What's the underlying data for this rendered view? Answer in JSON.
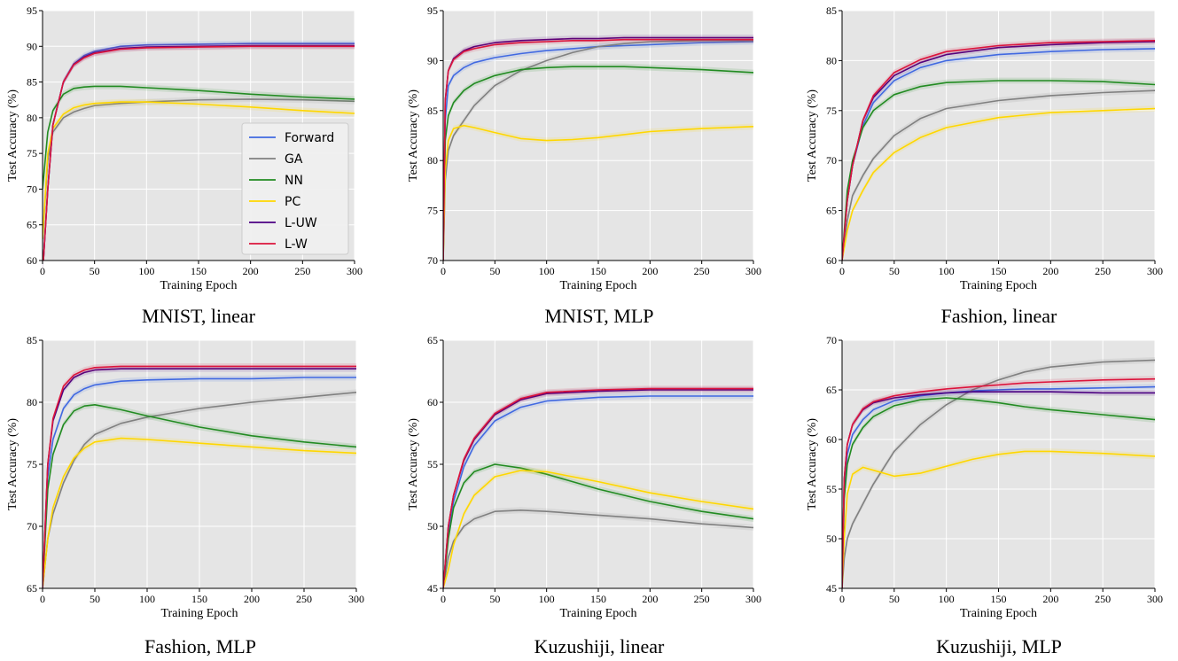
{
  "legend_labels": [
    "Forward",
    "GA",
    "NN",
    "PC",
    "L-UW",
    "L-W"
  ],
  "series_colors": {
    "Forward": "#4169e1",
    "GA": "#808080",
    "NN": "#228b22",
    "PC": "#ffd700",
    "L-UW": "#4b0082",
    "L-W": "#dc143c"
  },
  "plot_background": "#e5e5e5",
  "chart_data": [
    {
      "type": "line",
      "title": "MNIST, linear",
      "xlabel": "Training Epoch",
      "ylabel": "Test Accuracy (%)",
      "xlim": [
        0,
        300
      ],
      "ylim": [
        60,
        95
      ],
      "xticks": [
        0,
        50,
        100,
        150,
        200,
        250,
        300
      ],
      "yticks": [
        60,
        65,
        70,
        75,
        80,
        85,
        90,
        95
      ],
      "grid": true,
      "legend": "lower-right",
      "x": [
        0,
        5,
        10,
        20,
        30,
        40,
        50,
        75,
        100,
        150,
        200,
        250,
        300
      ],
      "series": [
        {
          "name": "Forward",
          "values": [
            58,
            70,
            79,
            85,
            87.5,
            88.7,
            89.3,
            90.0,
            90.2,
            90.3,
            90.4,
            90.4,
            90.4
          ]
        },
        {
          "name": "GA",
          "values": [
            63,
            74,
            78,
            80,
            80.8,
            81.3,
            81.7,
            82.0,
            82.2,
            82.5,
            82.6,
            82.5,
            82.3
          ]
        },
        {
          "name": "NN",
          "values": [
            70,
            78,
            81,
            83.3,
            84.1,
            84.3,
            84.4,
            84.4,
            84.2,
            83.8,
            83.3,
            82.9,
            82.6
          ]
        },
        {
          "name": "PC",
          "values": [
            63,
            75,
            78.5,
            80.5,
            81.4,
            81.8,
            82.0,
            82.2,
            82.2,
            81.9,
            81.5,
            81.0,
            80.6
          ]
        },
        {
          "name": "L-UW",
          "values": [
            58,
            70,
            79,
            85,
            87.5,
            88.5,
            89.1,
            89.7,
            89.9,
            90.0,
            90.1,
            90.1,
            90.1
          ]
        },
        {
          "name": "L-W",
          "values": [
            58,
            70,
            79,
            85,
            87.4,
            88.4,
            89.0,
            89.6,
            89.8,
            89.9,
            90.0,
            90.0,
            90.0
          ]
        }
      ]
    },
    {
      "type": "line",
      "title": "MNIST, MLP",
      "xlabel": "Training Epoch",
      "ylabel": "Test Accuracy (%)",
      "xlim": [
        0,
        300
      ],
      "ylim": [
        70,
        95
      ],
      "xticks": [
        0,
        50,
        100,
        150,
        200,
        250,
        300
      ],
      "yticks": [
        70,
        75,
        80,
        85,
        90,
        95
      ],
      "grid": true,
      "x": [
        0,
        2,
        5,
        10,
        20,
        30,
        50,
        75,
        100,
        125,
        150,
        175,
        200,
        250,
        300
      ],
      "series": [
        {
          "name": "Forward",
          "values": [
            70,
            84,
            87.5,
            88.5,
            89.3,
            89.8,
            90.3,
            90.7,
            91.0,
            91.2,
            91.4,
            91.5,
            91.6,
            91.8,
            91.9
          ]
        },
        {
          "name": "GA",
          "values": [
            70,
            78,
            81,
            82.5,
            84,
            85.5,
            87.5,
            89,
            90,
            90.8,
            91.4,
            91.7,
            91.9,
            92.0,
            92.0
          ]
        },
        {
          "name": "NN",
          "values": [
            70,
            82,
            84.5,
            85.8,
            87,
            87.7,
            88.5,
            89.1,
            89.3,
            89.4,
            89.4,
            89.4,
            89.3,
            89.1,
            88.8
          ]
        },
        {
          "name": "PC",
          "values": [
            70,
            79,
            82,
            83.2,
            83.5,
            83.3,
            82.8,
            82.2,
            82.0,
            82.1,
            82.3,
            82.6,
            82.9,
            83.2,
            83.4
          ]
        },
        {
          "name": "L-UW",
          "values": [
            70,
            86,
            89,
            90.2,
            91.0,
            91.4,
            91.8,
            92.0,
            92.1,
            92.2,
            92.2,
            92.3,
            92.3,
            92.3,
            92.3
          ]
        },
        {
          "name": "L-W",
          "values": [
            70,
            86,
            89,
            90.1,
            90.9,
            91.2,
            91.6,
            91.8,
            91.9,
            92.0,
            92.0,
            92.1,
            92.1,
            92.1,
            92.1
          ]
        }
      ]
    },
    {
      "type": "line",
      "title": "Fashion, linear",
      "xlabel": "Training Epoch",
      "ylabel": "Test Accuracy (%)",
      "xlim": [
        0,
        300
      ],
      "ylim": [
        60,
        85
      ],
      "xticks": [
        0,
        50,
        100,
        150,
        200,
        250,
        300
      ],
      "yticks": [
        60,
        65,
        70,
        75,
        80,
        85
      ],
      "grid": true,
      "x": [
        0,
        5,
        10,
        20,
        30,
        50,
        75,
        100,
        150,
        200,
        250,
        300
      ],
      "series": [
        {
          "name": "Forward",
          "values": [
            60,
            66,
            69.5,
            73.5,
            75.8,
            78.0,
            79.3,
            80.0,
            80.6,
            80.9,
            81.1,
            81.2
          ]
        },
        {
          "name": "GA",
          "values": [
            60,
            64,
            66.5,
            68.5,
            70.2,
            72.5,
            74.2,
            75.2,
            76.0,
            76.5,
            76.8,
            77.0
          ]
        },
        {
          "name": "NN",
          "values": [
            60,
            67,
            70,
            73.3,
            75.0,
            76.6,
            77.4,
            77.8,
            78.0,
            78.0,
            77.9,
            77.6
          ]
        },
        {
          "name": "PC",
          "values": [
            60,
            63,
            65,
            67,
            68.8,
            70.8,
            72.3,
            73.3,
            74.3,
            74.8,
            75.0,
            75.2
          ]
        },
        {
          "name": "L-UW",
          "values": [
            60,
            66,
            69.5,
            74,
            76.3,
            78.5,
            79.8,
            80.6,
            81.3,
            81.6,
            81.8,
            81.9
          ]
        },
        {
          "name": "L-W",
          "values": [
            60,
            66,
            69.5,
            74,
            76.5,
            78.8,
            80.1,
            80.9,
            81.5,
            81.8,
            81.9,
            82.0
          ]
        }
      ]
    },
    {
      "type": "line",
      "title": "Fashion, MLP",
      "xlabel": "Training Epoch",
      "ylabel": "Test Accuracy (%)",
      "xlim": [
        0,
        300
      ],
      "ylim": [
        65,
        85
      ],
      "xticks": [
        0,
        50,
        100,
        150,
        200,
        250,
        300
      ],
      "yticks": [
        65,
        70,
        75,
        80,
        85
      ],
      "grid": true,
      "x": [
        0,
        5,
        10,
        20,
        30,
        40,
        50,
        75,
        100,
        150,
        200,
        250,
        300
      ],
      "series": [
        {
          "name": "Forward",
          "values": [
            65,
            74,
            77,
            79.5,
            80.6,
            81.1,
            81.4,
            81.7,
            81.8,
            81.9,
            81.9,
            82.0,
            82.0
          ]
        },
        {
          "name": "GA",
          "values": [
            65,
            69,
            71,
            73.5,
            75.3,
            76.6,
            77.4,
            78.3,
            78.8,
            79.5,
            80.0,
            80.4,
            80.8
          ]
        },
        {
          "name": "NN",
          "values": [
            65,
            73,
            75.8,
            78.2,
            79.3,
            79.7,
            79.8,
            79.4,
            78.9,
            78.0,
            77.3,
            76.8,
            76.4
          ]
        },
        {
          "name": "PC",
          "values": [
            65,
            69,
            71.5,
            74,
            75.5,
            76.3,
            76.8,
            77.1,
            77.0,
            76.7,
            76.4,
            76.1,
            75.9
          ]
        },
        {
          "name": "L-UW",
          "values": [
            65,
            75,
            78.5,
            81,
            82,
            82.4,
            82.6,
            82.7,
            82.7,
            82.7,
            82.7,
            82.7,
            82.7
          ]
        },
        {
          "name": "L-W",
          "values": [
            65,
            75,
            78.7,
            81.3,
            82.2,
            82.6,
            82.8,
            82.9,
            82.9,
            82.9,
            82.9,
            82.9,
            82.9
          ]
        }
      ]
    },
    {
      "type": "line",
      "title": "Kuzushiji, linear",
      "xlabel": "Training Epoch",
      "ylabel": "Test Accuracy (%)",
      "xlim": [
        0,
        300
      ],
      "ylim": [
        45,
        65
      ],
      "xticks": [
        0,
        50,
        100,
        150,
        200,
        250,
        300
      ],
      "yticks": [
        45,
        50,
        55,
        60,
        65
      ],
      "grid": true,
      "x": [
        0,
        5,
        10,
        20,
        30,
        50,
        75,
        100,
        150,
        200,
        250,
        300
      ],
      "series": [
        {
          "name": "Forward",
          "values": [
            45,
            49.5,
            52,
            54.8,
            56.5,
            58.5,
            59.6,
            60.1,
            60.4,
            60.5,
            60.5,
            60.5
          ]
        },
        {
          "name": "GA",
          "values": [
            45,
            47.5,
            48.8,
            50.0,
            50.6,
            51.2,
            51.3,
            51.2,
            50.9,
            50.6,
            50.2,
            49.9
          ]
        },
        {
          "name": "NN",
          "values": [
            45,
            49,
            51.5,
            53.5,
            54.4,
            55.0,
            54.7,
            54.2,
            53.0,
            52.0,
            51.2,
            50.6
          ]
        },
        {
          "name": "PC",
          "values": [
            45,
            46.5,
            48.5,
            51.0,
            52.5,
            54.0,
            54.5,
            54.4,
            53.6,
            52.7,
            52.0,
            51.4
          ]
        },
        {
          "name": "L-UW",
          "values": [
            45,
            50,
            52.5,
            55.3,
            57.0,
            59.0,
            60.2,
            60.7,
            60.9,
            61.0,
            61.0,
            61.0
          ]
        },
        {
          "name": "L-W",
          "values": [
            45,
            50,
            52.5,
            55.4,
            57.1,
            59.1,
            60.3,
            60.8,
            61.0,
            61.1,
            61.1,
            61.1
          ]
        }
      ]
    },
    {
      "type": "line",
      "title": "Kuzushiji, MLP",
      "xlabel": "Training Epoch",
      "ylabel": "Test Accuracy (%)",
      "xlim": [
        0,
        300
      ],
      "ylim": [
        45,
        70
      ],
      "xticks": [
        0,
        50,
        100,
        150,
        200,
        250,
        300
      ],
      "yticks": [
        45,
        50,
        55,
        60,
        65,
        70
      ],
      "grid": true,
      "x": [
        0,
        2,
        5,
        10,
        20,
        30,
        50,
        75,
        100,
        125,
        150,
        175,
        200,
        250,
        300
      ],
      "series": [
        {
          "name": "Forward",
          "values": [
            45,
            55,
            58.5,
            60.5,
            62,
            63,
            63.9,
            64.4,
            64.7,
            64.9,
            65.0,
            65.1,
            65.1,
            65.2,
            65.3
          ]
        },
        {
          "name": "GA",
          "values": [
            45,
            48,
            50,
            51.5,
            53.5,
            55.5,
            58.8,
            61.5,
            63.5,
            65.0,
            66.0,
            66.8,
            67.3,
            67.8,
            68.0
          ]
        },
        {
          "name": "NN",
          "values": [
            45,
            54,
            57.5,
            59.5,
            61.2,
            62.3,
            63.4,
            64.0,
            64.2,
            64.0,
            63.7,
            63.3,
            63.0,
            62.5,
            62.0
          ]
        },
        {
          "name": "PC",
          "values": [
            45,
            50,
            54.5,
            56.5,
            57.2,
            56.9,
            56.3,
            56.6,
            57.3,
            58.0,
            58.5,
            58.8,
            58.8,
            58.6,
            58.3
          ]
        },
        {
          "name": "L-UW",
          "values": [
            45,
            56,
            59.5,
            61.5,
            63,
            63.7,
            64.2,
            64.5,
            64.7,
            64.8,
            64.8,
            64.8,
            64.8,
            64.7,
            64.7
          ]
        },
        {
          "name": "L-W",
          "values": [
            45,
            56,
            59.5,
            61.5,
            63.1,
            63.8,
            64.4,
            64.8,
            65.1,
            65.3,
            65.5,
            65.7,
            65.8,
            66.0,
            66.1
          ]
        }
      ]
    }
  ]
}
